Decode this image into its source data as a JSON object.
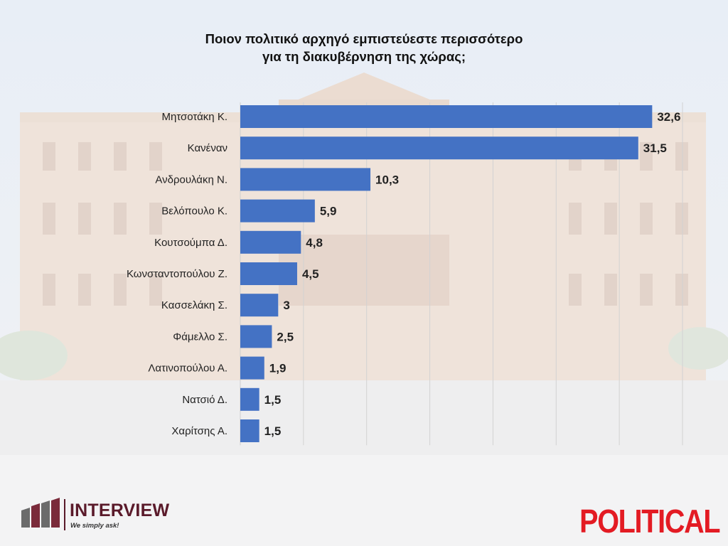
{
  "chart_data": {
    "type": "bar",
    "orientation": "horizontal",
    "title": "Ποιον πολιτικό αρχηγό εμπιστεύεστε περισσότερο για τη διακυβέρνηση της χώρας;",
    "title_lines": [
      "Ποιον πολιτικό αρχηγό εμπιστεύεστε περισσότερο",
      "για τη διακυβέρνηση της χώρας;"
    ],
    "categories": [
      "Μητσοτάκη Κ.",
      "Κανέναν",
      "Ανδρουλάκη Ν.",
      "Βελόπουλο Κ.",
      "Κουτσούμπα Δ.",
      "Κωνσταντοπούλου Ζ.",
      "Κασσελάκη Σ.",
      "Φάμελλο Σ.",
      "Λατινοπούλου Α.",
      "Νατσιό Δ.",
      "Χαρίτσης Α."
    ],
    "values": [
      32.6,
      31.5,
      10.3,
      5.9,
      4.8,
      4.5,
      3,
      2.5,
      1.9,
      1.5,
      1.5
    ],
    "value_labels": [
      "32,6",
      "31,5",
      "10,3",
      "5,9",
      "4,8",
      "4,5",
      "3",
      "2,5",
      "1,9",
      "1,5",
      "1,5"
    ],
    "xlim": [
      0,
      35
    ],
    "grid": true,
    "bar_color": "#4472c4"
  },
  "branding": {
    "interview_name": "INTERVIEW",
    "interview_tagline": "We simply ask!",
    "publisher": "POLITICAL",
    "interview_color": "#5a1a2a",
    "publisher_color": "#e31b23"
  }
}
